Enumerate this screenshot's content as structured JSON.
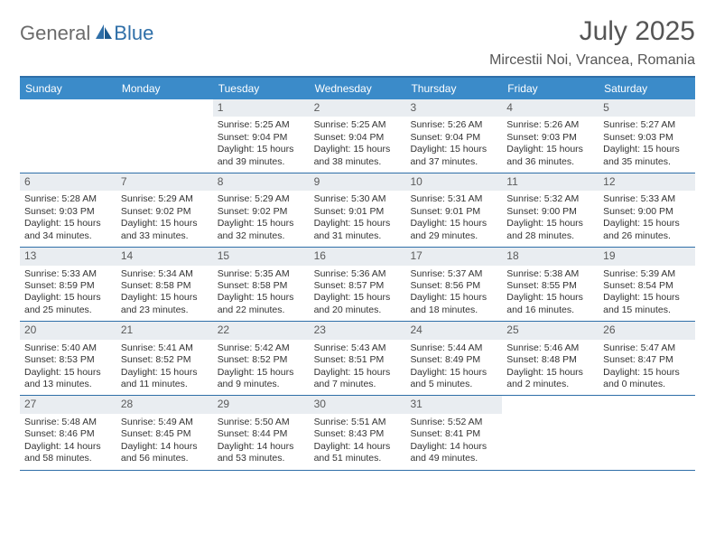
{
  "logo": {
    "part1": "General",
    "part2": "Blue"
  },
  "title": "July 2025",
  "location": "Mircestii Noi, Vrancea, Romania",
  "colors": {
    "header_bg": "#3b8bc9",
    "border": "#2f6fa8",
    "daynum_bg": "#e9edf1",
    "text": "#333333",
    "logo_gray": "#6b6b6b",
    "logo_blue": "#2f6fa8"
  },
  "day_names": [
    "Sunday",
    "Monday",
    "Tuesday",
    "Wednesday",
    "Thursday",
    "Friday",
    "Saturday"
  ],
  "weeks": [
    [
      {
        "empty": true
      },
      {
        "empty": true
      },
      {
        "day": "1",
        "sunrise": "Sunrise: 5:25 AM",
        "sunset": "Sunset: 9:04 PM",
        "daylight": "Daylight: 15 hours and 39 minutes."
      },
      {
        "day": "2",
        "sunrise": "Sunrise: 5:25 AM",
        "sunset": "Sunset: 9:04 PM",
        "daylight": "Daylight: 15 hours and 38 minutes."
      },
      {
        "day": "3",
        "sunrise": "Sunrise: 5:26 AM",
        "sunset": "Sunset: 9:04 PM",
        "daylight": "Daylight: 15 hours and 37 minutes."
      },
      {
        "day": "4",
        "sunrise": "Sunrise: 5:26 AM",
        "sunset": "Sunset: 9:03 PM",
        "daylight": "Daylight: 15 hours and 36 minutes."
      },
      {
        "day": "5",
        "sunrise": "Sunrise: 5:27 AM",
        "sunset": "Sunset: 9:03 PM",
        "daylight": "Daylight: 15 hours and 35 minutes."
      }
    ],
    [
      {
        "day": "6",
        "sunrise": "Sunrise: 5:28 AM",
        "sunset": "Sunset: 9:03 PM",
        "daylight": "Daylight: 15 hours and 34 minutes."
      },
      {
        "day": "7",
        "sunrise": "Sunrise: 5:29 AM",
        "sunset": "Sunset: 9:02 PM",
        "daylight": "Daylight: 15 hours and 33 minutes."
      },
      {
        "day": "8",
        "sunrise": "Sunrise: 5:29 AM",
        "sunset": "Sunset: 9:02 PM",
        "daylight": "Daylight: 15 hours and 32 minutes."
      },
      {
        "day": "9",
        "sunrise": "Sunrise: 5:30 AM",
        "sunset": "Sunset: 9:01 PM",
        "daylight": "Daylight: 15 hours and 31 minutes."
      },
      {
        "day": "10",
        "sunrise": "Sunrise: 5:31 AM",
        "sunset": "Sunset: 9:01 PM",
        "daylight": "Daylight: 15 hours and 29 minutes."
      },
      {
        "day": "11",
        "sunrise": "Sunrise: 5:32 AM",
        "sunset": "Sunset: 9:00 PM",
        "daylight": "Daylight: 15 hours and 28 minutes."
      },
      {
        "day": "12",
        "sunrise": "Sunrise: 5:33 AM",
        "sunset": "Sunset: 9:00 PM",
        "daylight": "Daylight: 15 hours and 26 minutes."
      }
    ],
    [
      {
        "day": "13",
        "sunrise": "Sunrise: 5:33 AM",
        "sunset": "Sunset: 8:59 PM",
        "daylight": "Daylight: 15 hours and 25 minutes."
      },
      {
        "day": "14",
        "sunrise": "Sunrise: 5:34 AM",
        "sunset": "Sunset: 8:58 PM",
        "daylight": "Daylight: 15 hours and 23 minutes."
      },
      {
        "day": "15",
        "sunrise": "Sunrise: 5:35 AM",
        "sunset": "Sunset: 8:58 PM",
        "daylight": "Daylight: 15 hours and 22 minutes."
      },
      {
        "day": "16",
        "sunrise": "Sunrise: 5:36 AM",
        "sunset": "Sunset: 8:57 PM",
        "daylight": "Daylight: 15 hours and 20 minutes."
      },
      {
        "day": "17",
        "sunrise": "Sunrise: 5:37 AM",
        "sunset": "Sunset: 8:56 PM",
        "daylight": "Daylight: 15 hours and 18 minutes."
      },
      {
        "day": "18",
        "sunrise": "Sunrise: 5:38 AM",
        "sunset": "Sunset: 8:55 PM",
        "daylight": "Daylight: 15 hours and 16 minutes."
      },
      {
        "day": "19",
        "sunrise": "Sunrise: 5:39 AM",
        "sunset": "Sunset: 8:54 PM",
        "daylight": "Daylight: 15 hours and 15 minutes."
      }
    ],
    [
      {
        "day": "20",
        "sunrise": "Sunrise: 5:40 AM",
        "sunset": "Sunset: 8:53 PM",
        "daylight": "Daylight: 15 hours and 13 minutes."
      },
      {
        "day": "21",
        "sunrise": "Sunrise: 5:41 AM",
        "sunset": "Sunset: 8:52 PM",
        "daylight": "Daylight: 15 hours and 11 minutes."
      },
      {
        "day": "22",
        "sunrise": "Sunrise: 5:42 AM",
        "sunset": "Sunset: 8:52 PM",
        "daylight": "Daylight: 15 hours and 9 minutes."
      },
      {
        "day": "23",
        "sunrise": "Sunrise: 5:43 AM",
        "sunset": "Sunset: 8:51 PM",
        "daylight": "Daylight: 15 hours and 7 minutes."
      },
      {
        "day": "24",
        "sunrise": "Sunrise: 5:44 AM",
        "sunset": "Sunset: 8:49 PM",
        "daylight": "Daylight: 15 hours and 5 minutes."
      },
      {
        "day": "25",
        "sunrise": "Sunrise: 5:46 AM",
        "sunset": "Sunset: 8:48 PM",
        "daylight": "Daylight: 15 hours and 2 minutes."
      },
      {
        "day": "26",
        "sunrise": "Sunrise: 5:47 AM",
        "sunset": "Sunset: 8:47 PM",
        "daylight": "Daylight: 15 hours and 0 minutes."
      }
    ],
    [
      {
        "day": "27",
        "sunrise": "Sunrise: 5:48 AM",
        "sunset": "Sunset: 8:46 PM",
        "daylight": "Daylight: 14 hours and 58 minutes."
      },
      {
        "day": "28",
        "sunrise": "Sunrise: 5:49 AM",
        "sunset": "Sunset: 8:45 PM",
        "daylight": "Daylight: 14 hours and 56 minutes."
      },
      {
        "day": "29",
        "sunrise": "Sunrise: 5:50 AM",
        "sunset": "Sunset: 8:44 PM",
        "daylight": "Daylight: 14 hours and 53 minutes."
      },
      {
        "day": "30",
        "sunrise": "Sunrise: 5:51 AM",
        "sunset": "Sunset: 8:43 PM",
        "daylight": "Daylight: 14 hours and 51 minutes."
      },
      {
        "day": "31",
        "sunrise": "Sunrise: 5:52 AM",
        "sunset": "Sunset: 8:41 PM",
        "daylight": "Daylight: 14 hours and 49 minutes."
      },
      {
        "empty": true
      },
      {
        "empty": true
      }
    ]
  ]
}
